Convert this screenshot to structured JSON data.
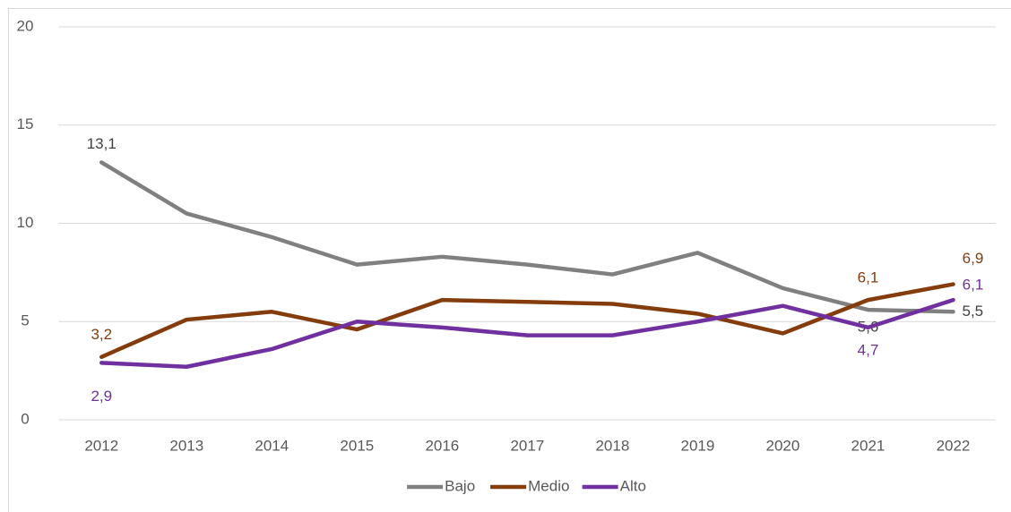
{
  "chart_data": {
    "type": "line",
    "categories": [
      "2012",
      "2013",
      "2014",
      "2015",
      "2016",
      "2017",
      "2018",
      "2019",
      "2020",
      "2021",
      "2022"
    ],
    "series": [
      {
        "name": "Bajo",
        "color": "#808080",
        "values": [
          13.1,
          10.5,
          9.3,
          7.9,
          8.3,
          7.9,
          7.4,
          8.5,
          6.7,
          5.6,
          5.5
        ],
        "value_labels": [
          "13,1",
          null,
          null,
          null,
          null,
          null,
          null,
          null,
          null,
          "5,6",
          "5,5"
        ]
      },
      {
        "name": "Medio",
        "color": "#843c0c",
        "values": [
          3.2,
          5.1,
          5.5,
          4.6,
          6.1,
          6.0,
          5.9,
          5.4,
          4.4,
          6.1,
          6.9
        ],
        "value_labels": [
          "3,2",
          null,
          null,
          null,
          null,
          null,
          null,
          null,
          null,
          "6,1",
          "6,9"
        ]
      },
      {
        "name": "Alto",
        "color": "#7030a0",
        "values": [
          2.9,
          2.7,
          3.6,
          5.0,
          4.7,
          4.3,
          4.3,
          5.0,
          5.8,
          4.7,
          6.1
        ],
        "value_labels": [
          "2,9",
          null,
          null,
          null,
          null,
          null,
          null,
          null,
          null,
          "4,7",
          "6,1"
        ]
      }
    ],
    "ylim": [
      0,
      20
    ],
    "yticks": [
      0,
      5,
      10,
      15,
      20
    ],
    "grid": true,
    "legend": "bottom"
  }
}
